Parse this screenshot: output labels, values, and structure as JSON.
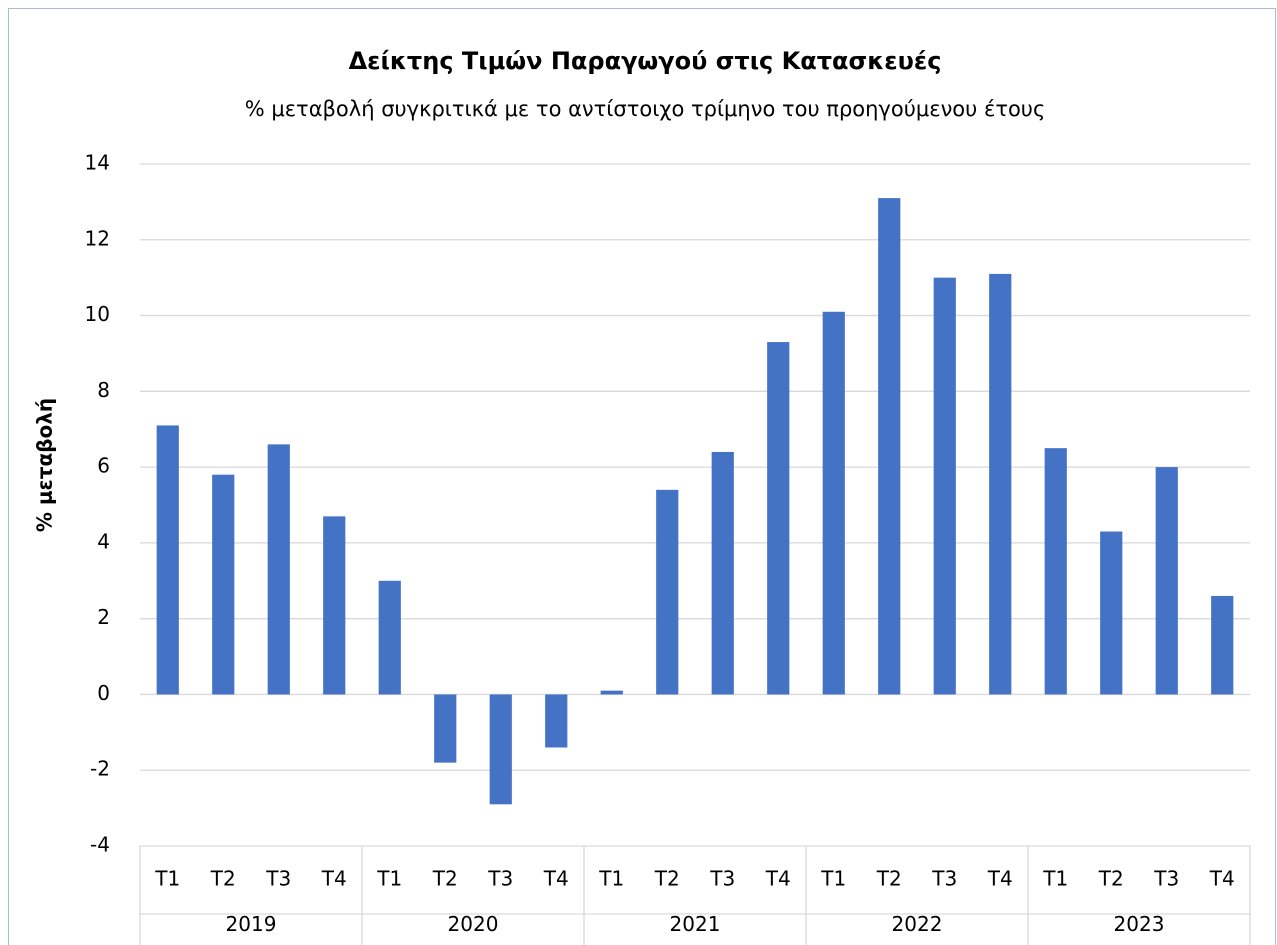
{
  "chart_data": {
    "type": "bar",
    "title": "Δείκτης Τιμών Παραγωγού στις Κατασκευές",
    "subtitle": "% μεταβολή συγκριτικά με το αντίστοιχο τρίμηνο του προηγούμενου έτους",
    "y_label": "% μεταβολή",
    "categories": [
      "T1",
      "T2",
      "T3",
      "T4",
      "T1",
      "T2",
      "T3",
      "T4",
      "T1",
      "T2",
      "T3",
      "T4",
      "T1",
      "T2",
      "T3",
      "T4",
      "T1",
      "T2",
      "T3",
      "T4"
    ],
    "groups": [
      "2019",
      "2020",
      "2021",
      "2022",
      "2023"
    ],
    "values": [
      7.1,
      5.8,
      6.6,
      4.7,
      3.0,
      -1.8,
      -2.9,
      -1.4,
      0.1,
      5.4,
      6.4,
      9.3,
      10.1,
      13.1,
      11.0,
      11.1,
      6.5,
      4.3,
      6.0,
      2.6
    ],
    "color": "#4472c4",
    "ylim": [
      -4,
      14
    ],
    "yticks": [
      -4,
      -2,
      0,
      2,
      4,
      6,
      8,
      10,
      12,
      14
    ],
    "grid": true
  }
}
